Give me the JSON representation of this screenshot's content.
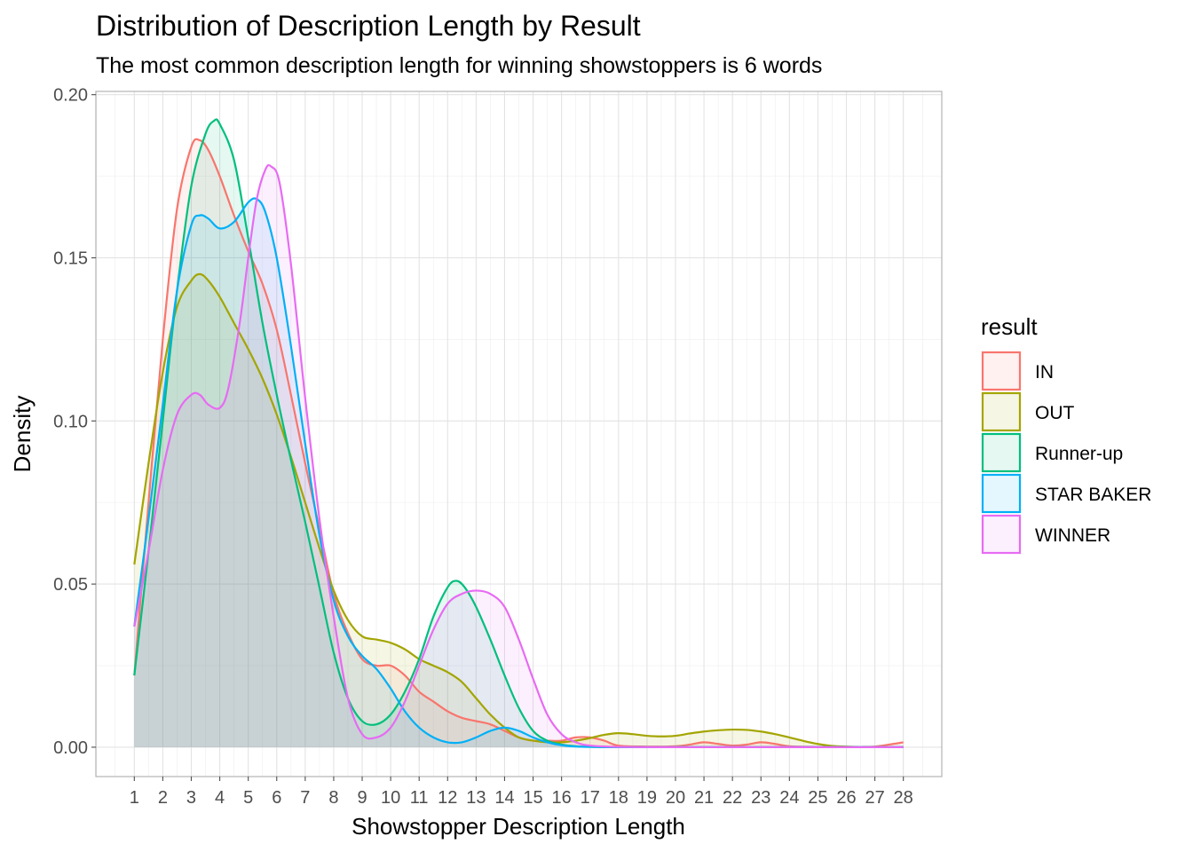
{
  "chart_data": {
    "type": "area",
    "title": "Distribution of Description Length by Result",
    "subtitle": "The most common description length for winning showstoppers is 6 words",
    "xlabel": "Showstopper Description Length",
    "ylabel": "Density",
    "xlim": [
      1,
      28
    ],
    "ylim": [
      -0.009,
      0.201
    ],
    "x_ticks": [
      1,
      2,
      3,
      4,
      5,
      6,
      7,
      8,
      9,
      10,
      11,
      12,
      13,
      14,
      15,
      16,
      17,
      18,
      19,
      20,
      21,
      22,
      23,
      24,
      25,
      26,
      27,
      28
    ],
    "y_ticks": [
      0.0,
      0.05,
      0.1,
      0.15,
      0.2
    ],
    "y_tick_labels": [
      "0.00",
      "0.05",
      "0.10",
      "0.15",
      "0.20"
    ],
    "grid": true,
    "legend": {
      "title": "result",
      "position": "right"
    },
    "series": [
      {
        "name": "IN",
        "color": "#F8766D",
        "points": [
          [
            1,
            0.022
          ],
          [
            1.5,
            0.075
          ],
          [
            2,
            0.125
          ],
          [
            2.5,
            0.165
          ],
          [
            3,
            0.184
          ],
          [
            3.3,
            0.186
          ],
          [
            3.6,
            0.183
          ],
          [
            4,
            0.175
          ],
          [
            4.5,
            0.163
          ],
          [
            5,
            0.152
          ],
          [
            5.5,
            0.142
          ],
          [
            6,
            0.128
          ],
          [
            6.5,
            0.108
          ],
          [
            7,
            0.087
          ],
          [
            7.5,
            0.067
          ],
          [
            8,
            0.047
          ],
          [
            8.5,
            0.035
          ],
          [
            9,
            0.027
          ],
          [
            9.5,
            0.025
          ],
          [
            10,
            0.025
          ],
          [
            10.5,
            0.022
          ],
          [
            11,
            0.017
          ],
          [
            11.5,
            0.014
          ],
          [
            12,
            0.011
          ],
          [
            12.5,
            0.009
          ],
          [
            13,
            0.008
          ],
          [
            13.5,
            0.007
          ],
          [
            14,
            0.005
          ],
          [
            14.5,
            0.003
          ],
          [
            15,
            0.002
          ],
          [
            15.5,
            0.002
          ],
          [
            16,
            0.002
          ],
          [
            16.5,
            0.003
          ],
          [
            17,
            0.003
          ],
          [
            17.5,
            0.002
          ],
          [
            18,
            0.0005
          ],
          [
            19,
            0.0002
          ],
          [
            20,
            0.0003
          ],
          [
            20.5,
            0.0008
          ],
          [
            21,
            0.0015
          ],
          [
            21.5,
            0.001
          ],
          [
            22,
            0.0005
          ],
          [
            22.5,
            0.0008
          ],
          [
            23,
            0.0015
          ],
          [
            23.5,
            0.001
          ],
          [
            24,
            0.0003
          ],
          [
            25,
            0.0001
          ],
          [
            26,
            0.0001
          ],
          [
            26.5,
            0.0001
          ],
          [
            27,
            0.0002
          ],
          [
            27.5,
            0.0008
          ],
          [
            28,
            0.0015
          ]
        ]
      },
      {
        "name": "OUT",
        "color": "#A3A500",
        "points": [
          [
            1,
            0.056
          ],
          [
            1.5,
            0.087
          ],
          [
            2,
            0.115
          ],
          [
            2.5,
            0.135
          ],
          [
            3,
            0.143
          ],
          [
            3.3,
            0.145
          ],
          [
            3.6,
            0.143
          ],
          [
            4,
            0.138
          ],
          [
            4.5,
            0.13
          ],
          [
            5,
            0.122
          ],
          [
            5.5,
            0.113
          ],
          [
            6,
            0.102
          ],
          [
            6.5,
            0.089
          ],
          [
            7,
            0.075
          ],
          [
            7.5,
            0.061
          ],
          [
            8,
            0.048
          ],
          [
            8.5,
            0.039
          ],
          [
            9,
            0.034
          ],
          [
            9.5,
            0.033
          ],
          [
            10,
            0.032
          ],
          [
            10.5,
            0.03
          ],
          [
            11,
            0.027
          ],
          [
            11.5,
            0.025
          ],
          [
            12,
            0.023
          ],
          [
            12.5,
            0.02
          ],
          [
            13,
            0.015
          ],
          [
            13.5,
            0.01
          ],
          [
            14,
            0.006
          ],
          [
            14.5,
            0.003
          ],
          [
            15,
            0.002
          ],
          [
            15.5,
            0.0015
          ],
          [
            16,
            0.0015
          ],
          [
            16.5,
            0.002
          ],
          [
            17,
            0.0028
          ],
          [
            17.5,
            0.0038
          ],
          [
            18,
            0.0043
          ],
          [
            18.5,
            0.004
          ],
          [
            19,
            0.0035
          ],
          [
            19.5,
            0.0033
          ],
          [
            20,
            0.0035
          ],
          [
            20.5,
            0.0042
          ],
          [
            21,
            0.0048
          ],
          [
            21.5,
            0.0052
          ],
          [
            22,
            0.0054
          ],
          [
            22.5,
            0.0053
          ],
          [
            23,
            0.0048
          ],
          [
            23.5,
            0.004
          ],
          [
            24,
            0.003
          ],
          [
            24.5,
            0.0019
          ],
          [
            25,
            0.001
          ],
          [
            25.5,
            0.0004
          ],
          [
            26,
            0.0002
          ],
          [
            26.5,
            0.0001
          ],
          [
            27,
            0.0001
          ],
          [
            28,
            0.0001
          ]
        ]
      },
      {
        "name": "Runner-up",
        "color": "#00BF7D",
        "points": [
          [
            1,
            0.022
          ],
          [
            1.5,
            0.06
          ],
          [
            2,
            0.1
          ],
          [
            2.5,
            0.14
          ],
          [
            3,
            0.172
          ],
          [
            3.5,
            0.188
          ],
          [
            3.8,
            0.192
          ],
          [
            4,
            0.191
          ],
          [
            4.5,
            0.18
          ],
          [
            5,
            0.156
          ],
          [
            5.5,
            0.13
          ],
          [
            6,
            0.108
          ],
          [
            6.5,
            0.088
          ],
          [
            7,
            0.069
          ],
          [
            7.5,
            0.049
          ],
          [
            8,
            0.029
          ],
          [
            8.5,
            0.015
          ],
          [
            9,
            0.008
          ],
          [
            9.5,
            0.007
          ],
          [
            10,
            0.01
          ],
          [
            10.5,
            0.017
          ],
          [
            11,
            0.027
          ],
          [
            11.5,
            0.04
          ],
          [
            12,
            0.049
          ],
          [
            12.3,
            0.051
          ],
          [
            12.6,
            0.049
          ],
          [
            13,
            0.043
          ],
          [
            13.5,
            0.033
          ],
          [
            14,
            0.022
          ],
          [
            14.5,
            0.012
          ],
          [
            15,
            0.005
          ],
          [
            15.5,
            0.002
          ],
          [
            16,
            0.0008
          ],
          [
            16.5,
            0.0003
          ],
          [
            17,
            0.0001
          ],
          [
            18,
            0.0
          ],
          [
            20,
            0.0
          ],
          [
            22,
            0.0
          ],
          [
            24,
            0.0
          ],
          [
            26,
            0.0
          ],
          [
            28,
            0.0
          ]
        ]
      },
      {
        "name": "STAR BAKER",
        "color": "#00B0F6",
        "points": [
          [
            1,
            0.037
          ],
          [
            1.5,
            0.07
          ],
          [
            2,
            0.105
          ],
          [
            2.5,
            0.14
          ],
          [
            3,
            0.16
          ],
          [
            3.3,
            0.163
          ],
          [
            3.6,
            0.162
          ],
          [
            4,
            0.159
          ],
          [
            4.5,
            0.161
          ],
          [
            5,
            0.167
          ],
          [
            5.3,
            0.168
          ],
          [
            5.6,
            0.164
          ],
          [
            6,
            0.15
          ],
          [
            6.5,
            0.123
          ],
          [
            7,
            0.093
          ],
          [
            7.5,
            0.065
          ],
          [
            8,
            0.045
          ],
          [
            8.5,
            0.034
          ],
          [
            9,
            0.028
          ],
          [
            9.5,
            0.024
          ],
          [
            10,
            0.018
          ],
          [
            10.5,
            0.011
          ],
          [
            11,
            0.006
          ],
          [
            11.5,
            0.003
          ],
          [
            12,
            0.0015
          ],
          [
            12.5,
            0.0015
          ],
          [
            13,
            0.003
          ],
          [
            13.5,
            0.005
          ],
          [
            14,
            0.006
          ],
          [
            14.5,
            0.005
          ],
          [
            15,
            0.003
          ],
          [
            15.5,
            0.0015
          ],
          [
            16,
            0.0006
          ],
          [
            16.5,
            0.0002
          ],
          [
            17,
            0.0001
          ],
          [
            18,
            0.0
          ],
          [
            20,
            0.0
          ],
          [
            22,
            0.0
          ],
          [
            24,
            0.0
          ],
          [
            26,
            0.0
          ],
          [
            28,
            0.0
          ]
        ]
      },
      {
        "name": "WINNER",
        "color": "#E76BF3",
        "points": [
          [
            1,
            0.037
          ],
          [
            1.5,
            0.06
          ],
          [
            2,
            0.085
          ],
          [
            2.5,
            0.102
          ],
          [
            3,
            0.108
          ],
          [
            3.3,
            0.108
          ],
          [
            3.6,
            0.105
          ],
          [
            4,
            0.104
          ],
          [
            4.3,
            0.11
          ],
          [
            4.7,
            0.13
          ],
          [
            5,
            0.15
          ],
          [
            5.3,
            0.168
          ],
          [
            5.6,
            0.177
          ],
          [
            5.8,
            0.178
          ],
          [
            6.1,
            0.173
          ],
          [
            6.5,
            0.148
          ],
          [
            7,
            0.107
          ],
          [
            7.5,
            0.07
          ],
          [
            8,
            0.04
          ],
          [
            8.5,
            0.015
          ],
          [
            9,
            0.004
          ],
          [
            9.5,
            0.003
          ],
          [
            10,
            0.006
          ],
          [
            10.5,
            0.014
          ],
          [
            11,
            0.025
          ],
          [
            11.5,
            0.036
          ],
          [
            12,
            0.044
          ],
          [
            12.5,
            0.047
          ],
          [
            13,
            0.048
          ],
          [
            13.5,
            0.047
          ],
          [
            14,
            0.043
          ],
          [
            14.5,
            0.033
          ],
          [
            15,
            0.021
          ],
          [
            15.5,
            0.01
          ],
          [
            16,
            0.004
          ],
          [
            16.5,
            0.0015
          ],
          [
            17,
            0.0005
          ],
          [
            18,
            0.0001
          ],
          [
            20,
            0.0
          ],
          [
            22,
            0.0
          ],
          [
            24,
            0.0
          ],
          [
            26,
            0.0
          ],
          [
            28,
            0.0
          ]
        ]
      }
    ]
  }
}
